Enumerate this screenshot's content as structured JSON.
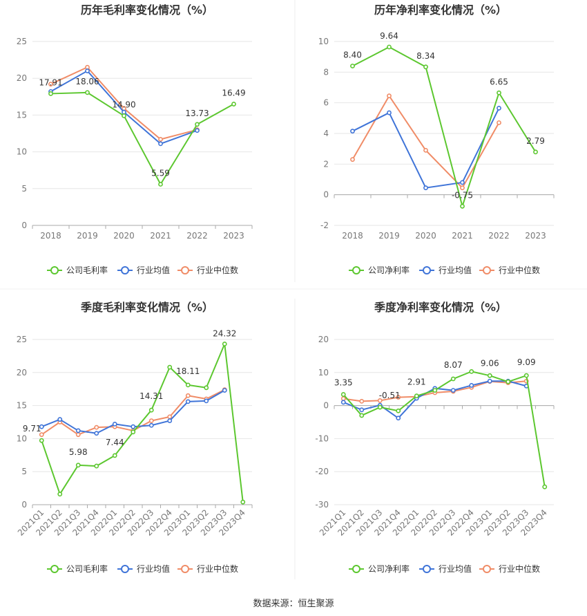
{
  "source": "数据来源：恒生聚源",
  "colors": {
    "company": "#5cc72f",
    "avg": "#3f74d8",
    "median": "#f08c67",
    "grid": "#e6e6e6",
    "axis": "#999999",
    "divider": "#e8e8e8"
  },
  "legend": {
    "company_gross": "公司毛利率",
    "company_net": "公司净利率",
    "avg": "行业均值",
    "median": "行业中位数"
  },
  "chart_data": [
    {
      "type": "line",
      "title": "历年毛利率变化情况（%）",
      "categories": [
        "2018",
        "2019",
        "2020",
        "2021",
        "2022",
        "2023"
      ],
      "ylim": [
        0,
        25
      ],
      "yticks": [
        0,
        5,
        10,
        15,
        20,
        25
      ],
      "series": [
        {
          "name": "公司毛利率",
          "key": "company",
          "values": [
            17.91,
            18.06,
            14.9,
            5.59,
            13.73,
            16.49
          ]
        },
        {
          "name": "行业均值",
          "key": "avg",
          "values": [
            18.2,
            21.0,
            15.4,
            11.1,
            12.9,
            null
          ]
        },
        {
          "name": "行业中位数",
          "key": "median",
          "values": [
            19.2,
            21.5,
            15.9,
            11.7,
            13.0,
            null
          ]
        }
      ],
      "data_labels": [
        "17.91",
        "18.06",
        "14.90",
        "5.59",
        "13.73",
        "16.49"
      ],
      "grid": true,
      "legend": "bottom"
    },
    {
      "type": "line",
      "title": "历年净利率变化情况（%）",
      "categories": [
        "2018",
        "2019",
        "2020",
        "2021",
        "2022",
        "2023"
      ],
      "ylim": [
        -2,
        10
      ],
      "yticks": [
        -2,
        0,
        2,
        4,
        6,
        8,
        10
      ],
      "series": [
        {
          "name": "公司净利率",
          "key": "company",
          "values": [
            8.4,
            9.64,
            8.34,
            -0.75,
            6.65,
            2.79
          ]
        },
        {
          "name": "行业均值",
          "key": "avg",
          "values": [
            4.15,
            5.35,
            0.45,
            0.8,
            5.65,
            null
          ]
        },
        {
          "name": "行业中位数",
          "key": "median",
          "values": [
            2.3,
            6.45,
            2.9,
            0.45,
            4.7,
            null
          ]
        }
      ],
      "data_labels": [
        "8.40",
        "9.64",
        "8.34",
        "-0.75",
        "6.65",
        "2.79"
      ],
      "grid": true,
      "legend": "bottom"
    },
    {
      "type": "line",
      "title": "季度毛利率变化情况（%）",
      "categories": [
        "2021Q1",
        "2021Q2",
        "2021Q3",
        "2021Q4",
        "2022Q1",
        "2022Q2",
        "2022Q3",
        "2022Q4",
        "2023Q1",
        "2023Q2",
        "2023Q3",
        "2023Q4"
      ],
      "ylim": [
        0,
        25
      ],
      "yticks": [
        0,
        5,
        10,
        15,
        20,
        25
      ],
      "series": [
        {
          "name": "公司毛利率",
          "key": "company",
          "values": [
            9.71,
            1.6,
            5.98,
            5.85,
            7.44,
            11.0,
            14.31,
            20.8,
            18.11,
            17.7,
            24.32,
            0.4
          ]
        },
        {
          "name": "行业均值",
          "key": "avg",
          "values": [
            11.8,
            12.9,
            11.2,
            10.8,
            12.2,
            11.8,
            12.0,
            12.7,
            15.6,
            15.7,
            17.3,
            null
          ]
        },
        {
          "name": "行业中位数",
          "key": "median",
          "values": [
            10.6,
            12.5,
            10.6,
            11.7,
            11.8,
            11.2,
            12.7,
            13.3,
            16.5,
            16.0,
            17.4,
            null
          ]
        }
      ],
      "data_labels": [
        "9.71",
        "",
        "5.98",
        "",
        "7.44",
        "",
        "14.31",
        "",
        "18.11",
        "",
        "24.32",
        ""
      ],
      "grid": true,
      "legend": "bottom"
    },
    {
      "type": "line",
      "title": "季度净利率变化情况（%）",
      "categories": [
        "2021Q1",
        "2021Q2",
        "2021Q3",
        "2021Q4",
        "2022Q1",
        "2022Q2",
        "2022Q3",
        "2022Q4",
        "2023Q1",
        "2023Q2",
        "2023Q3",
        "2023Q4"
      ],
      "ylim": [
        -30,
        20
      ],
      "yticks": [
        -30,
        -20,
        -10,
        0,
        10,
        20
      ],
      "series": [
        {
          "name": "公司净利率",
          "key": "company",
          "values": [
            3.35,
            -3.0,
            -0.51,
            -1.6,
            2.91,
            4.6,
            8.07,
            10.3,
            9.06,
            7.2,
            9.09,
            -24.6
          ]
        },
        {
          "name": "行业均值",
          "key": "avg",
          "values": [
            1.0,
            -1.3,
            0.1,
            -3.8,
            2.2,
            5.2,
            4.6,
            6.1,
            7.4,
            7.4,
            5.9,
            null
          ]
        },
        {
          "name": "行业中位数",
          "key": "median",
          "values": [
            2.1,
            1.3,
            1.5,
            2.5,
            2.7,
            3.9,
            4.3,
            5.5,
            7.3,
            6.9,
            7.4,
            null
          ]
        }
      ],
      "data_labels": [
        "3.35",
        "",
        "-0.51",
        "",
        "2.91",
        "",
        "8.07",
        "",
        "9.06",
        "",
        "9.09",
        ""
      ],
      "grid": true,
      "legend": "bottom"
    }
  ]
}
